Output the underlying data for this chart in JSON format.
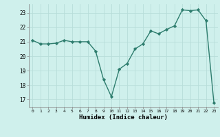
{
  "x": [
    0,
    1,
    2,
    3,
    4,
    5,
    6,
    7,
    8,
    9,
    10,
    11,
    12,
    13,
    14,
    15,
    16,
    17,
    18,
    19,
    20,
    21,
    22,
    23
  ],
  "y": [
    21.1,
    20.85,
    20.85,
    20.9,
    21.1,
    21.0,
    21.0,
    21.0,
    20.35,
    18.4,
    17.2,
    19.1,
    19.5,
    20.5,
    20.85,
    21.75,
    21.55,
    21.85,
    22.1,
    23.2,
    23.15,
    23.2,
    22.45,
    16.8
  ],
  "xlabel": "Humidex (Indice chaleur)",
  "xlim": [
    -0.5,
    23.5
  ],
  "ylim": [
    16.5,
    23.6
  ],
  "yticks": [
    17,
    18,
    19,
    20,
    21,
    22,
    23
  ],
  "xticks": [
    0,
    1,
    2,
    3,
    4,
    5,
    6,
    7,
    8,
    9,
    10,
    11,
    12,
    13,
    14,
    15,
    16,
    17,
    18,
    19,
    20,
    21,
    22,
    23
  ],
  "line_color": "#2e7d6e",
  "bg_color": "#cff0ec",
  "grid_color": "#b8ddd9",
  "marker": "D",
  "marker_size": 2.2,
  "line_width": 1.0
}
